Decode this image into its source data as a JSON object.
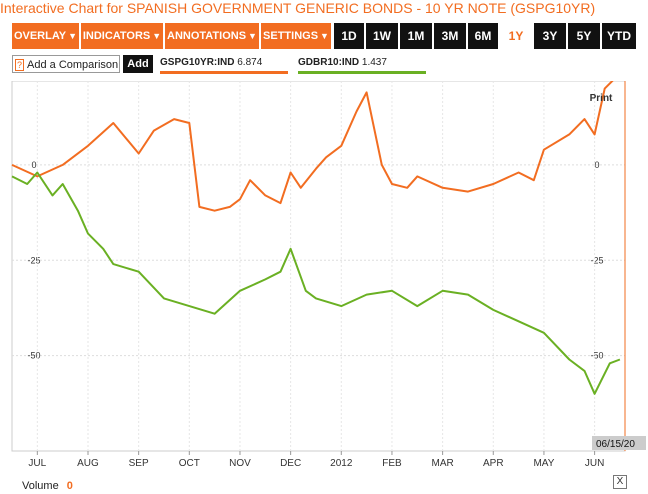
{
  "title": "Interactive Chart for SPANISH GOVERNMENT GENERIC BONDS - 10 YR NOTE (GSPG10YR)",
  "toolbar": {
    "menus": [
      "OVERLAY",
      "INDICATORS",
      "ANNOTATIONS",
      "SETTINGS"
    ],
    "ranges": [
      "1D",
      "1W",
      "1M",
      "3M",
      "6M",
      "1Y",
      "3Y",
      "5Y",
      "YTD"
    ],
    "active_range": "1Y"
  },
  "compare": {
    "question_mark": "?",
    "label": "Add a Comparison",
    "add_label": "Add"
  },
  "legend": [
    {
      "name": "GSPG10YR:IND",
      "value": "6.874",
      "color": "#f26d21"
    },
    {
      "name": "GDBR10:IND",
      "value": "1.437",
      "color": "#6ab023"
    }
  ],
  "print_label": "Print",
  "date_readout": "06/15/20",
  "volume": {
    "label": "Volume",
    "value": "0"
  },
  "close_label": "X",
  "chart_data": {
    "type": "line",
    "unit": "percent change",
    "x_tick_labels": [
      "JUL",
      "AUG",
      "SEP",
      "OCT",
      "NOV",
      "DEC",
      "2012",
      "FEB",
      "MAR",
      "APR",
      "MAY",
      "JUN"
    ],
    "y_tick_labels": [
      "0",
      "-25",
      "-50"
    ],
    "y_ticks": [
      0,
      -25,
      -50
    ],
    "ylim": [
      -75,
      22
    ],
    "grid": true,
    "series": [
      {
        "name": "GSPG10YR:IND",
        "color": "#f26d21",
        "x": [
          0,
          0.5,
          1,
          1.5,
          2,
          2.5,
          2.8,
          3.2,
          3.5,
          3.7,
          4,
          4.3,
          4.5,
          4.7,
          5,
          5.3,
          5.5,
          5.7,
          6,
          6.2,
          6.5,
          6.8,
          7,
          7.3,
          7.5,
          7.8,
          8,
          8.5,
          9,
          9.5,
          10,
          10.3,
          10.5,
          11,
          11.3,
          11.5,
          11.7,
          12
        ],
        "y": [
          0,
          -3,
          0,
          5,
          11,
          3,
          9,
          12,
          11,
          -11,
          -12,
          -11,
          -9,
          -4,
          -8,
          -10,
          -2,
          -6,
          -1,
          2,
          5,
          14,
          19,
          0,
          -5,
          -6,
          -3,
          -6,
          -7,
          -5,
          -2,
          -4,
          4,
          8,
          12,
          8,
          20,
          24
        ]
      },
      {
        "name": "GDBR10:IND",
        "color": "#6ab023",
        "x": [
          0,
          0.3,
          0.5,
          0.8,
          1,
          1.3,
          1.5,
          1.8,
          2,
          2.5,
          3,
          3.5,
          4,
          4.5,
          5,
          5.3,
          5.5,
          5.8,
          6,
          6.5,
          7,
          7.5,
          8,
          8.5,
          9,
          9.5,
          10,
          10.5,
          11,
          11.3,
          11.5,
          11.8,
          12
        ],
        "y": [
          -3,
          -5,
          -2,
          -8,
          -5,
          -12,
          -18,
          -22,
          -26,
          -28,
          -35,
          -37,
          -39,
          -33,
          -30,
          -28,
          -22,
          -33,
          -35,
          -37,
          -34,
          -33,
          -37,
          -33,
          -34,
          -38,
          -41,
          -44,
          -51,
          -54,
          -60,
          -52,
          -51
        ]
      }
    ]
  }
}
